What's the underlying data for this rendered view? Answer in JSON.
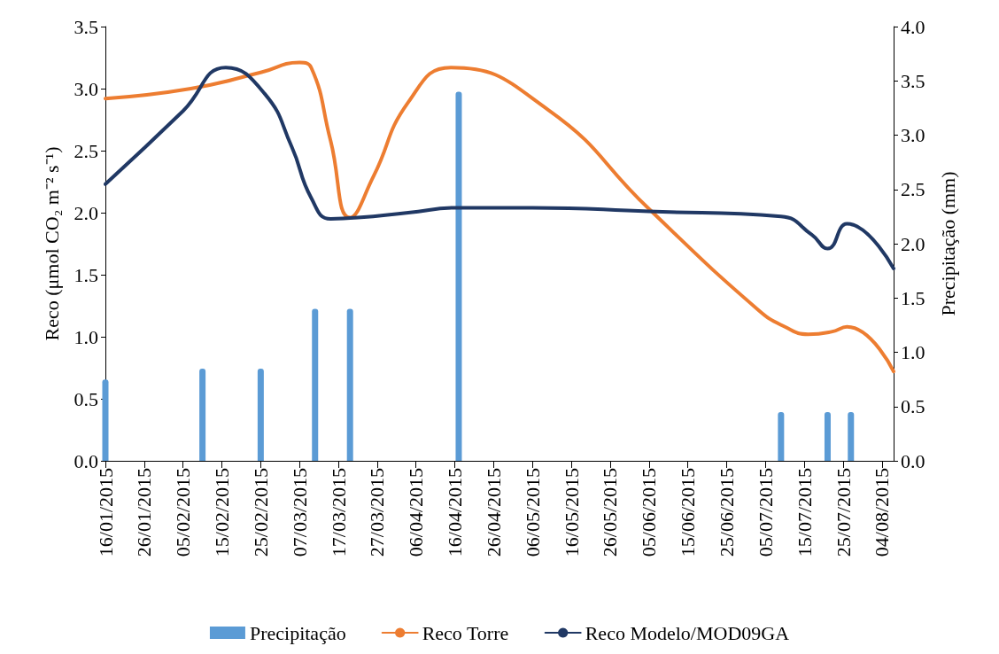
{
  "chart_data": {
    "type": "line",
    "ylabel": "Reco (μmol CO₂ m⁻² s⁻¹)",
    "y2label": "Precipitação (mm)",
    "legend": "bottom",
    "grid": false,
    "line_style": "solid",
    "marker": "none",
    "xlim": [
      "2015-01-16",
      "2015-08-07"
    ],
    "xticks": [
      {
        "value": "2015-01-16",
        "label": "16/01/2015"
      },
      {
        "value": "2015-01-26",
        "label": "26/01/2015"
      },
      {
        "value": "2015-02-05",
        "label": "05/02/2015"
      },
      {
        "value": "2015-02-15",
        "label": "15/02/2015"
      },
      {
        "value": "2015-02-25",
        "label": "25/02/2015"
      },
      {
        "value": "2015-03-07",
        "label": "07/03/2015"
      },
      {
        "value": "2015-03-17",
        "label": "17/03/2015"
      },
      {
        "value": "2015-03-27",
        "label": "27/03/2015"
      },
      {
        "value": "2015-04-06",
        "label": "06/04/2015"
      },
      {
        "value": "2015-04-16",
        "label": "16/04/2015"
      },
      {
        "value": "2015-04-26",
        "label": "26/04/2015"
      },
      {
        "value": "2015-05-06",
        "label": "06/05/2015"
      },
      {
        "value": "2015-05-16",
        "label": "16/05/2015"
      },
      {
        "value": "2015-05-26",
        "label": "26/05/2015"
      },
      {
        "value": "2015-06-05",
        "label": "05/06/2015"
      },
      {
        "value": "2015-06-15",
        "label": "15/06/2015"
      },
      {
        "value": "2015-06-25",
        "label": "25/06/2015"
      },
      {
        "value": "2015-07-05",
        "label": "05/07/2015"
      },
      {
        "value": "2015-07-15",
        "label": "15/07/2015"
      },
      {
        "value": "2015-07-25",
        "label": "25/07/2015"
      },
      {
        "value": "2015-08-04",
        "label": "04/08/2015"
      }
    ],
    "ylim": [
      0,
      3.5
    ],
    "yticks": [
      {
        "value": 0,
        "label": "0.0"
      },
      {
        "value": 0.5,
        "label": "0.5"
      },
      {
        "value": 1,
        "label": "1.0"
      },
      {
        "value": 1.5,
        "label": "1.5"
      },
      {
        "value": 2,
        "label": "2.0"
      },
      {
        "value": 2.5,
        "label": "2.5"
      },
      {
        "value": 3,
        "label": "3.0"
      },
      {
        "value": 3.5,
        "label": "3.5"
      }
    ],
    "y2lim": [
      0,
      4
    ],
    "y2ticks": [
      {
        "value": 0,
        "label": "0.0"
      },
      {
        "value": 0.5,
        "label": "0.5"
      },
      {
        "value": 1,
        "label": "1.0"
      },
      {
        "value": 1.5,
        "label": "1.5"
      },
      {
        "value": 2,
        "label": "2.0"
      },
      {
        "value": 2.5,
        "label": "2.5"
      },
      {
        "value": 3,
        "label": "3.0"
      },
      {
        "value": 3.5,
        "label": "3.5"
      },
      {
        "value": 4,
        "label": "4.0"
      }
    ],
    "series": [
      {
        "name": "Precipitação",
        "type": "bar",
        "axis": "y2",
        "color": "#5b9bd5",
        "x": [
          "2015-01-16",
          "2015-02-10",
          "2015-02-25",
          "2015-03-11",
          "2015-03-20",
          "2015-04-17",
          "2015-07-09",
          "2015-07-21",
          "2015-07-27"
        ],
        "values": [
          0.75,
          0.85,
          0.85,
          1.4,
          1.4,
          3.4,
          0.45,
          0.45,
          0.45
        ]
      },
      {
        "name": "Reco Torre",
        "color": "#ed7d31",
        "x": [
          "2015-01-16",
          "2015-02-07",
          "2015-02-25",
          "2015-03-07",
          "2015-03-10",
          "2015-03-15",
          "2015-03-20",
          "2015-03-26",
          "2015-04-04",
          "2015-04-15",
          "2015-05-10",
          "2015-06-05",
          "2015-07-03",
          "2015-07-10",
          "2015-07-16",
          "2015-07-22",
          "2015-07-26",
          "2015-08-07"
        ],
        "values": [
          2.92,
          3.0,
          3.13,
          3.21,
          3.17,
          2.58,
          1.96,
          2.29,
          2.89,
          3.17,
          2.83,
          2.03,
          1.22,
          1.08,
          1.02,
          1.04,
          1.08,
          0.72
        ]
      },
      {
        "name": "Reco Modelo/MOD09GA",
        "color": "#203864",
        "x": [
          "2015-01-16",
          "2015-02-05",
          "2015-02-16",
          "2015-02-26",
          "2015-03-05",
          "2015-03-10",
          "2015-03-15",
          "2015-03-22",
          "2015-04-04",
          "2015-04-17",
          "2015-05-06",
          "2015-06-05",
          "2015-07-09",
          "2015-07-17",
          "2015-07-21",
          "2015-07-26",
          "2015-08-07"
        ],
        "values": [
          2.23,
          2.82,
          3.17,
          2.96,
          2.53,
          2.12,
          1.95,
          1.96,
          2.0,
          2.04,
          2.04,
          2.01,
          1.97,
          1.82,
          1.71,
          1.91,
          1.55
        ]
      }
    ]
  }
}
